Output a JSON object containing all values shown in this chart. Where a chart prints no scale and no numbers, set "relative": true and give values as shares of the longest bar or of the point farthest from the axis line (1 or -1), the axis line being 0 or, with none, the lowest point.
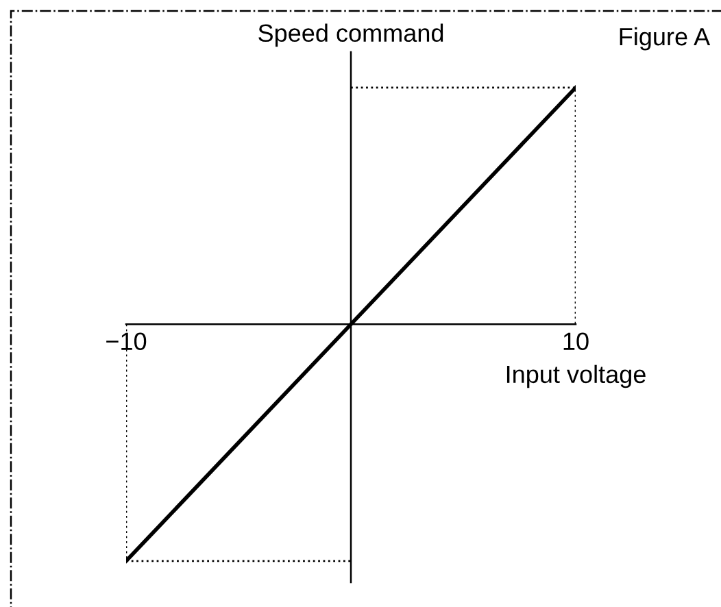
{
  "chart_data": {
    "type": "line",
    "title": "Figure A",
    "xlabel": "Input voltage",
    "ylabel": "Speed command",
    "relative": true,
    "xlim": [
      -10,
      10
    ],
    "xticks": [
      {
        "value": -10,
        "label": "−10"
      },
      10
    ],
    "grid": false,
    "legend": false,
    "marker": "none",
    "series": [
      {
        "color": "#000000",
        "x": [
          -10,
          10
        ],
        "values": [
          -1,
          1
        ],
        "line_style": "solid"
      },
      {
        "color": "#000000",
        "x": [
          0,
          10,
          10
        ],
        "values": [
          1,
          1,
          0
        ],
        "line_style": "dotted"
      },
      {
        "color": "#000000",
        "x": [
          -10,
          -10,
          0
        ],
        "values": [
          0,
          -1,
          -1
        ],
        "line_style": "dotted"
      }
    ]
  }
}
